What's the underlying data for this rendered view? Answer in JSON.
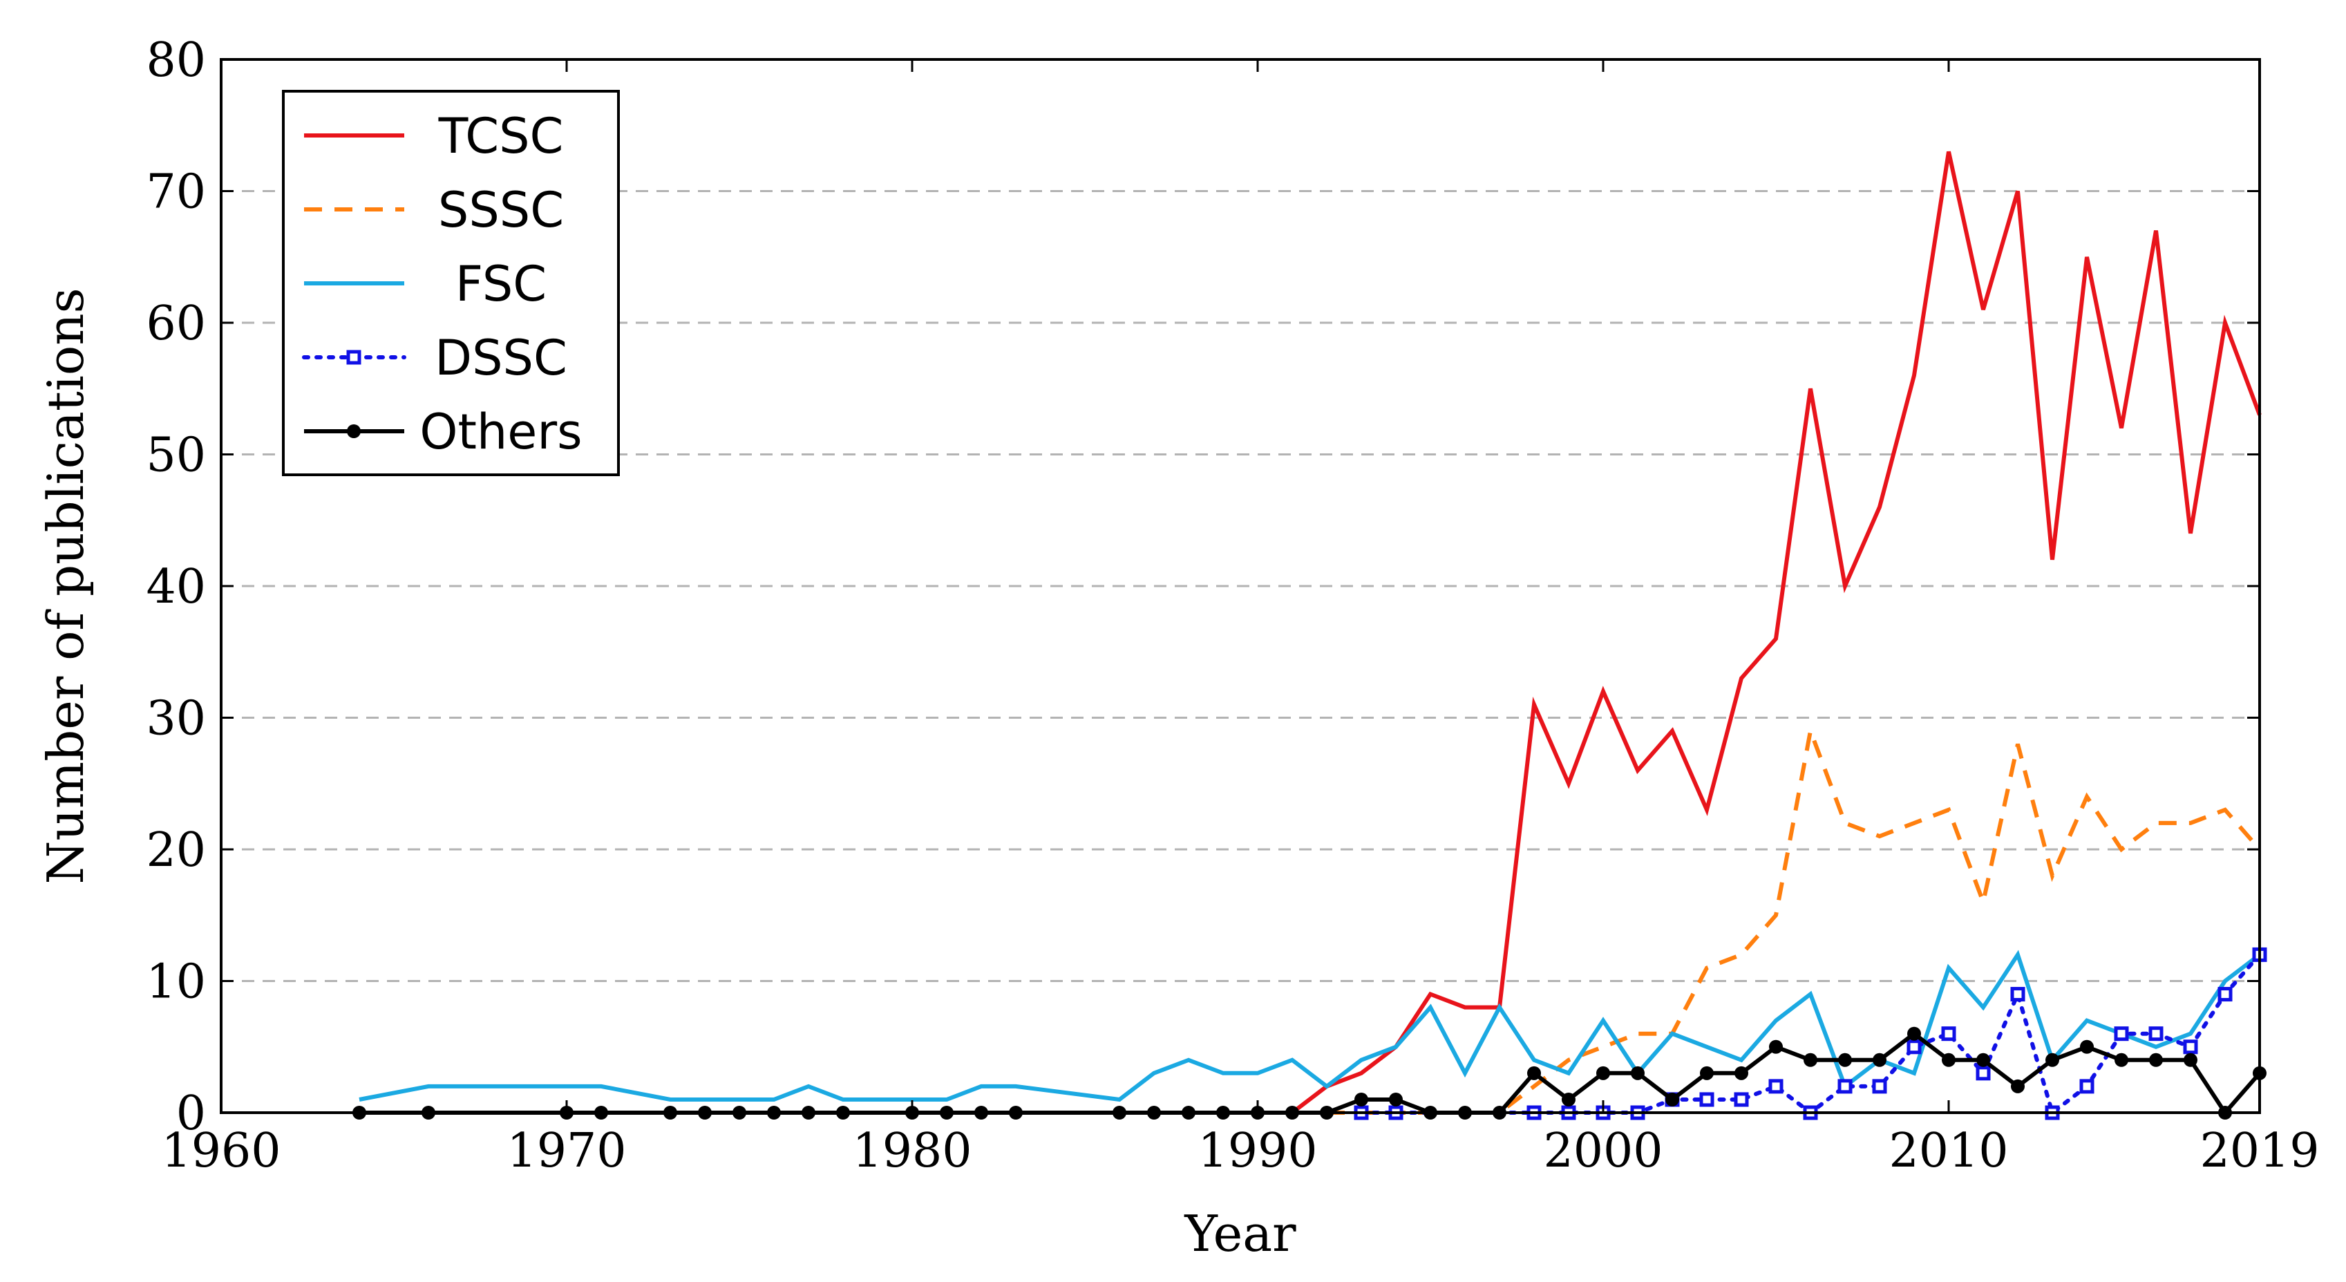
{
  "chart_data": {
    "type": "line",
    "xlabel": "Year",
    "ylabel": "Number of publications",
    "xlim": [
      1960,
      2019
    ],
    "ylim": [
      0,
      80
    ],
    "x_ticks": [
      "1960",
      "1970",
      "1980",
      "1990",
      "2000",
      "2010",
      "2019"
    ],
    "x_tick_values": [
      1960,
      1970,
      1980,
      1990,
      2000,
      2010,
      2019
    ],
    "y_ticks": [
      "0",
      "10",
      "20",
      "30",
      "40",
      "50",
      "60",
      "70",
      "80"
    ],
    "y_tick_values": [
      0,
      10,
      20,
      30,
      40,
      50,
      60,
      70,
      80
    ],
    "grid": "horizontal dashed",
    "legend_position": "top-left",
    "series": [
      {
        "name": "TCSC",
        "color": "#e8141b",
        "style": "solid",
        "marker": "none",
        "x": [
          1991,
          1992,
          1993,
          1994,
          1995,
          1996,
          1997,
          1998,
          1999,
          2000,
          2001,
          2002,
          2003,
          2004,
          2005,
          2006,
          2007,
          2008,
          2009,
          2010,
          2011,
          2012,
          2013,
          2014,
          2015,
          2016,
          2017,
          2018,
          2019
        ],
        "values": [
          0,
          2,
          3,
          5,
          9,
          8,
          8,
          31,
          25,
          32,
          26,
          29,
          23,
          33,
          36,
          55,
          40,
          46,
          56,
          73,
          61,
          70,
          42,
          65,
          52,
          67,
          44,
          60,
          53
        ]
      },
      {
        "name": "SSSC",
        "color": "#ff7f0e",
        "style": "dashed",
        "marker": "none",
        "x": [
          1992,
          1993,
          1994,
          1995,
          1996,
          1997,
          1998,
          1999,
          2000,
          2001,
          2002,
          2003,
          2004,
          2005,
          2006,
          2007,
          2008,
          2009,
          2010,
          2011,
          2012,
          2013,
          2014,
          2015,
          2016,
          2017,
          2018,
          2019
        ],
        "values": [
          0,
          0,
          0,
          0,
          0,
          0,
          2,
          4,
          5,
          6,
          6,
          11,
          12,
          15,
          29,
          22,
          21,
          22,
          23,
          16,
          28,
          18,
          24,
          20,
          22,
          22,
          23,
          20
        ]
      },
      {
        "name": "FSC",
        "color": "#1ba9e2",
        "style": "solid",
        "marker": "none",
        "x": [
          1964,
          1966,
          1970,
          1971,
          1973,
          1974,
          1975,
          1976,
          1977,
          1978,
          1980,
          1981,
          1982,
          1983,
          1986,
          1987,
          1988,
          1989,
          1990,
          1991,
          1992,
          1993,
          1994,
          1995,
          1996,
          1997,
          1998,
          1999,
          2000,
          2001,
          2002,
          2003,
          2004,
          2005,
          2006,
          2007,
          2008,
          2009,
          2010,
          2011,
          2012,
          2013,
          2014,
          2015,
          2016,
          2017,
          2018,
          2019
        ],
        "values": [
          1,
          2,
          2,
          2,
          1,
          1,
          1,
          1,
          2,
          1,
          1,
          1,
          2,
          2,
          1,
          3,
          4,
          3,
          3,
          4,
          2,
          4,
          5,
          8,
          3,
          8,
          4,
          3,
          7,
          3,
          6,
          5,
          4,
          7,
          9,
          2,
          4,
          3,
          11,
          8,
          12,
          4,
          7,
          6,
          5,
          6,
          10,
          12
        ]
      },
      {
        "name": "DSSC",
        "color": "#1010e6",
        "style": "dotted",
        "marker": "square",
        "x": [
          1993,
          1994,
          1998,
          1999,
          2000,
          2001,
          2002,
          2003,
          2004,
          2005,
          2006,
          2007,
          2008,
          2009,
          2010,
          2011,
          2012,
          2013,
          2014,
          2015,
          2016,
          2017,
          2018,
          2019
        ],
        "values": [
          0,
          0,
          0,
          0,
          0,
          0,
          1,
          1,
          1,
          2,
          0,
          2,
          2,
          5,
          6,
          3,
          9,
          0,
          2,
          6,
          6,
          5,
          9,
          12
        ]
      },
      {
        "name": "Others",
        "color": "#000000",
        "style": "solid",
        "marker": "circle",
        "x": [
          1964,
          1966,
          1970,
          1971,
          1973,
          1974,
          1975,
          1976,
          1977,
          1978,
          1980,
          1981,
          1982,
          1983,
          1986,
          1987,
          1988,
          1989,
          1990,
          1991,
          1992,
          1993,
          1994,
          1995,
          1996,
          1997,
          1998,
          1999,
          2000,
          2001,
          2002,
          2003,
          2004,
          2005,
          2006,
          2007,
          2008,
          2009,
          2010,
          2011,
          2012,
          2013,
          2014,
          2015,
          2016,
          2017,
          2018,
          2019
        ],
        "values": [
          0,
          0,
          0,
          0,
          0,
          0,
          0,
          0,
          0,
          0,
          0,
          0,
          0,
          0,
          0,
          0,
          0,
          0,
          0,
          0,
          0,
          1,
          1,
          0,
          0,
          0,
          3,
          1,
          3,
          3,
          1,
          3,
          3,
          5,
          4,
          4,
          4,
          6,
          4,
          4,
          2,
          4,
          5,
          4,
          4,
          4,
          0,
          3
        ]
      }
    ]
  }
}
